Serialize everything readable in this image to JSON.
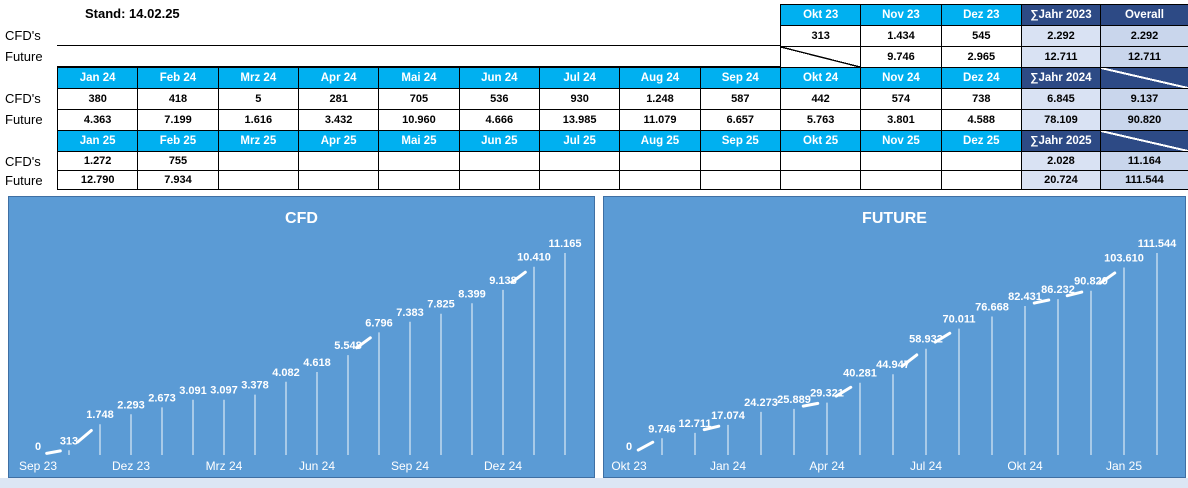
{
  "stand_label": "Stand: 14.02.25",
  "colors": {
    "month_header": "#00B0F0",
    "navy_header": "#2D4A85",
    "sum_cell_bg": "#D9E2F3",
    "overall_cell_bg": "#C9D6EC",
    "chart_background": "#5B9BD5",
    "chart_text": "#FFFFFF",
    "table_border": "#000000"
  },
  "tables": {
    "row_labels": {
      "cfd": "CFD's",
      "future": "Future"
    },
    "sections": [
      {
        "year": "2023",
        "months": [
          "Okt 23",
          "Nov 23",
          "Dez 23"
        ],
        "sum_header": "∑Jahr 2023",
        "overall_header": "Overall",
        "cfd": [
          "313",
          "1.434",
          "545"
        ],
        "future": [
          "",
          "9.746",
          "2.965"
        ],
        "future_diag_first": true,
        "cfd_sum": "2.292",
        "cfd_overall": "2.292",
        "future_sum": "12.711",
        "future_overall": "12.711"
      },
      {
        "year": "2024",
        "months": [
          "Jan 24",
          "Feb 24",
          "Mrz 24",
          "Apr 24",
          "Mai 24",
          "Jun 24",
          "Jul 24",
          "Aug 24",
          "Sep 24",
          "Okt 24",
          "Nov 24",
          "Dez 24"
        ],
        "sum_header": "∑Jahr 2024",
        "overall_header": null,
        "cfd": [
          "380",
          "418",
          "5",
          "281",
          "705",
          "536",
          "930",
          "1.248",
          "587",
          "442",
          "574",
          "738"
        ],
        "future": [
          "4.363",
          "7.199",
          "1.616",
          "3.432",
          "10.960",
          "4.666",
          "13.985",
          "11.079",
          "6.657",
          "5.763",
          "3.801",
          "4.588"
        ],
        "future_diag_first": false,
        "cfd_sum": "6.845",
        "cfd_overall": "9.137",
        "future_sum": "78.109",
        "future_overall": "90.820"
      },
      {
        "year": "2025",
        "months": [
          "Jan 25",
          "Feb 25",
          "Mrz 25",
          "Apr 25",
          "Mai 25",
          "Jun 25",
          "Jul 25",
          "Aug 25",
          "Sep 25",
          "Okt 25",
          "Nov 25",
          "Dez 25"
        ],
        "sum_header": "∑Jahr 2025",
        "overall_header": null,
        "cfd": [
          "1.272",
          "755",
          "",
          "",
          "",
          "",
          "",
          "",
          "",
          "",
          "",
          ""
        ],
        "future": [
          "12.790",
          "7.934",
          "",
          "",
          "",
          "",
          "",
          "",
          "",
          "",
          "",
          ""
        ],
        "future_diag_first": false,
        "cfd_sum": "2.028",
        "cfd_overall": "11.164",
        "future_sum": "20.724",
        "future_overall": "111.544"
      }
    ]
  },
  "chart_data": [
    {
      "type": "line",
      "title": "CFD",
      "categories": [
        "Sep 23",
        "Okt 23",
        "Nov 23",
        "Dez 23",
        "Jan 24",
        "Feb 24",
        "Mrz 24",
        "Apr 24",
        "Mai 24",
        "Jun 24",
        "Jul 24",
        "Aug 24",
        "Sep 24",
        "Okt 24",
        "Nov 24",
        "Dez 24",
        "Jan 25",
        "Feb 25"
      ],
      "values": [
        0,
        313,
        1748,
        2293,
        2673,
        3091,
        3097,
        3378,
        4082,
        4618,
        5548,
        6796,
        7383,
        7825,
        8399,
        9138,
        10410,
        11165
      ],
      "labels": [
        "0",
        "313",
        "1.748",
        "2.293",
        "2.673",
        "3.091",
        "3.097",
        "3.378",
        "4.082",
        "4.618",
        "5.548",
        "6.796",
        "7.383",
        "7.825",
        "8.399",
        "9.138",
        "10.410",
        "11.165"
      ],
      "x_ticks": [
        "Sep 23",
        "Dez 23",
        "Mrz 24",
        "Jun 24",
        "Sep 24",
        "Dez 24"
      ],
      "x_tick_indices": [
        0,
        3,
        6,
        9,
        12,
        15
      ],
      "ylim": [
        0,
        12000
      ],
      "y_axis_visible": false,
      "gridlines": false,
      "legend": false,
      "line_color": "#FFFFFF",
      "background": "#5B9BD5",
      "dash_segments": [
        [
          0,
          1
        ],
        [
          1,
          2
        ],
        [
          10,
          11
        ],
        [
          15,
          16
        ]
      ]
    },
    {
      "type": "line",
      "title": "FUTURE",
      "categories": [
        "Okt 23",
        "Nov 23",
        "Dez 23",
        "Jan 24",
        "Feb 24",
        "Mrz 24",
        "Apr 24",
        "Mai 24",
        "Jun 24",
        "Jul 24",
        "Aug 24",
        "Sep 24",
        "Okt 24",
        "Nov 24",
        "Dez 24",
        "Jan 25",
        "Feb 25"
      ],
      "values": [
        0,
        9746,
        12711,
        17074,
        24273,
        25889,
        29321,
        40281,
        44947,
        58932,
        70011,
        76668,
        82431,
        86232,
        90820,
        103610,
        111544
      ],
      "labels": [
        "0",
        "9.746",
        "12.711",
        "17.074",
        "24.273",
        "25.889",
        "29.321",
        "40.281",
        "44.947",
        "58.932",
        "70.011",
        "76.668",
        "82.431",
        "86.232",
        "90.820",
        "103.610",
        "111.544"
      ],
      "x_ticks": [
        "Okt 23",
        "Jan 24",
        "Apr 24",
        "Jul 24",
        "Okt 24",
        "Jan 25"
      ],
      "x_tick_indices": [
        0,
        3,
        6,
        9,
        12,
        15
      ],
      "ylim": [
        0,
        120000
      ],
      "y_axis_visible": false,
      "gridlines": false,
      "legend": false,
      "line_color": "#FFFFFF",
      "background": "#5B9BD5",
      "dash_segments": [
        [
          0,
          1
        ],
        [
          2,
          3
        ],
        [
          5,
          6
        ],
        [
          6,
          7
        ],
        [
          8,
          9
        ],
        [
          9,
          10
        ],
        [
          12,
          13
        ],
        [
          13,
          14
        ],
        [
          14,
          15
        ]
      ]
    }
  ]
}
